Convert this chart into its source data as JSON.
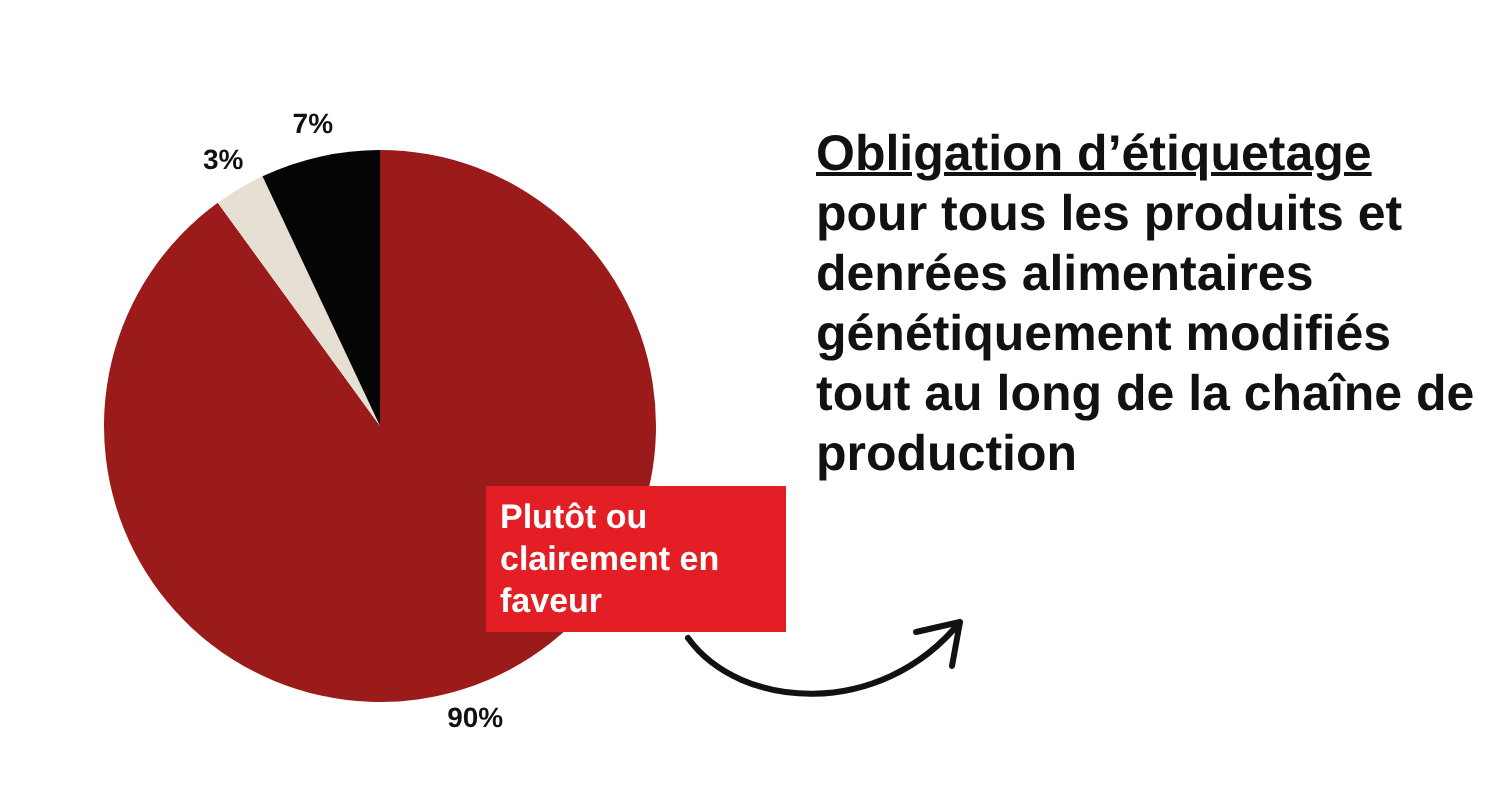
{
  "chart_data": {
    "type": "pie",
    "title": "Obligation d’étiquetage",
    "subtitle": "pour tous les produits et denrées alimentaires génétiquement modifiés tout au long de la chaîne de production",
    "categories": [
      "Plutôt ou clairement en faveur",
      null,
      null
    ],
    "values": [
      90,
      3,
      7
    ],
    "colors": [
      "#9b1b1b",
      "#e6e0d4",
      "#050505"
    ],
    "value_labels": [
      "90%",
      "3%",
      "7%"
    ],
    "legend": false
  }
}
